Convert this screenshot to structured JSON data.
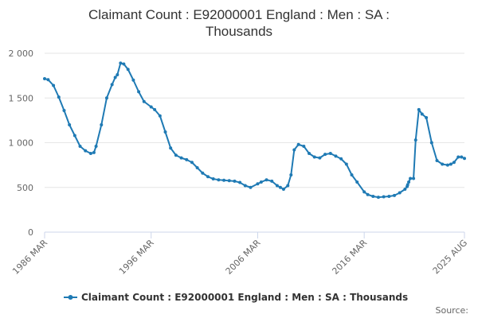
{
  "chart_data": {
    "type": "line",
    "title_lines": [
      "Claimant Count : E92000001 England : Men : SA :",
      "Thousands"
    ],
    "xlabel": "",
    "ylabel": "",
    "x_ticks": [
      "1986 MAR",
      "1996 MAR",
      "2006 MAR",
      "2016 MAR",
      "2025 AUG"
    ],
    "x_range": [
      1986.17,
      2025.58
    ],
    "y_ticks": [
      "0",
      "500",
      "1 000",
      "1 500",
      "2 000"
    ],
    "y_tick_values": [
      0,
      500,
      1000,
      1500,
      2000
    ],
    "ylim": [
      0,
      2000
    ],
    "grid": "horizontal",
    "legend_position": "bottom",
    "source_label": "Source:",
    "series_color": "#1f7ab4",
    "series": [
      {
        "name": "Claimant Count : E92000001 England : Men : SA : Thousands",
        "x": [
          1986.17,
          1986.5,
          1987.0,
          1987.5,
          1988.0,
          1988.5,
          1989.0,
          1989.5,
          1990.0,
          1990.5,
          1990.8,
          1991.0,
          1991.5,
          1992.0,
          1992.5,
          1992.8,
          1993.0,
          1993.3,
          1993.6,
          1994.0,
          1994.5,
          1995.0,
          1995.5,
          1996.17,
          1996.5,
          1997.0,
          1997.5,
          1998.0,
          1998.5,
          1999.0,
          1999.5,
          2000.0,
          2000.5,
          2001.0,
          2001.5,
          2002.0,
          2002.5,
          2003.0,
          2003.5,
          2004.0,
          2004.5,
          2005.0,
          2005.5,
          2006.17,
          2006.5,
          2007.0,
          2007.5,
          2008.0,
          2008.3,
          2008.6,
          2009.0,
          2009.3,
          2009.6,
          2010.0,
          2010.5,
          2011.0,
          2011.5,
          2012.0,
          2012.5,
          2013.0,
          2013.5,
          2014.0,
          2014.5,
          2015.0,
          2015.5,
          2016.17,
          2016.5,
          2017.0,
          2017.5,
          2018.0,
          2018.5,
          2019.0,
          2019.5,
          2020.0,
          2020.2,
          2020.25,
          2020.35,
          2020.5,
          2020.8,
          2021.0,
          2021.3,
          2021.6,
          2022.0,
          2022.5,
          2023.0,
          2023.5,
          2024.0,
          2024.3,
          2024.6,
          2025.0,
          2025.3,
          2025.58
        ],
        "values": [
          1715,
          1705,
          1640,
          1510,
          1360,
          1200,
          1080,
          960,
          910,
          880,
          890,
          960,
          1200,
          1500,
          1650,
          1730,
          1760,
          1890,
          1880,
          1820,
          1700,
          1570,
          1460,
          1400,
          1370,
          1300,
          1120,
          940,
          860,
          830,
          810,
          780,
          720,
          660,
          620,
          595,
          585,
          580,
          575,
          570,
          555,
          520,
          500,
          540,
          560,
          585,
          570,
          520,
          500,
          480,
          520,
          640,
          920,
          980,
          960,
          880,
          840,
          830,
          870,
          880,
          850,
          820,
          760,
          640,
          560,
          450,
          420,
          400,
          390,
          395,
          400,
          410,
          440,
          480,
          510,
          530,
          560,
          600,
          600,
          1030,
          1370,
          1320,
          1280,
          1000,
          800,
          760,
          750,
          760,
          780,
          840,
          840,
          825
        ]
      }
    ]
  }
}
